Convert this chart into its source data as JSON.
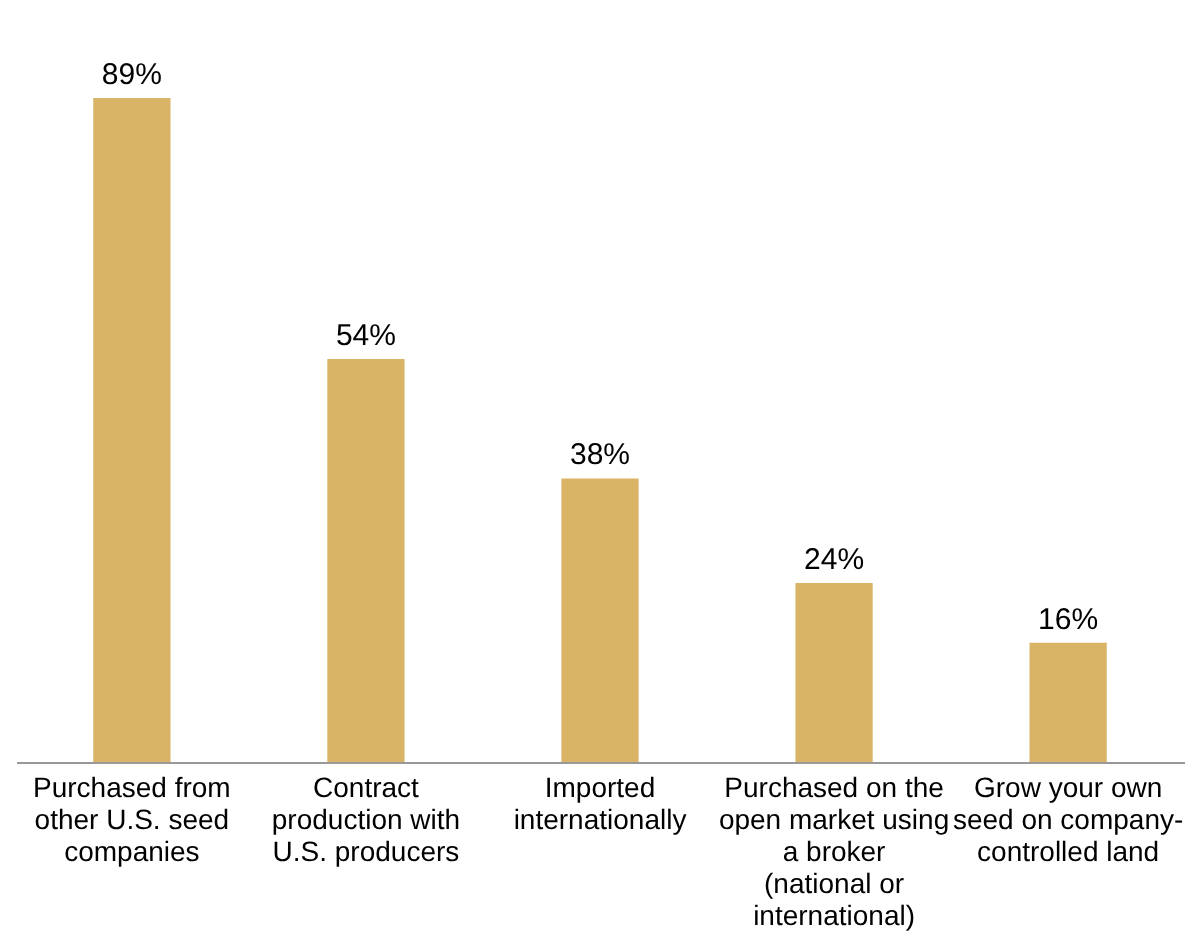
{
  "chart_data": {
    "type": "bar",
    "categories": [
      "Purchased from other U.S. seed companies",
      "Contract production with U.S. producers",
      "Imported internationally",
      "Purchased on the open market using a broker (national or international)",
      "Grow your own seed on company-controlled land"
    ],
    "values": [
      89,
      54,
      38,
      24,
      16
    ],
    "color": "#d9b466",
    "value_labels": [
      "89%",
      "54%",
      "38%",
      "24%",
      "16%"
    ]
  }
}
